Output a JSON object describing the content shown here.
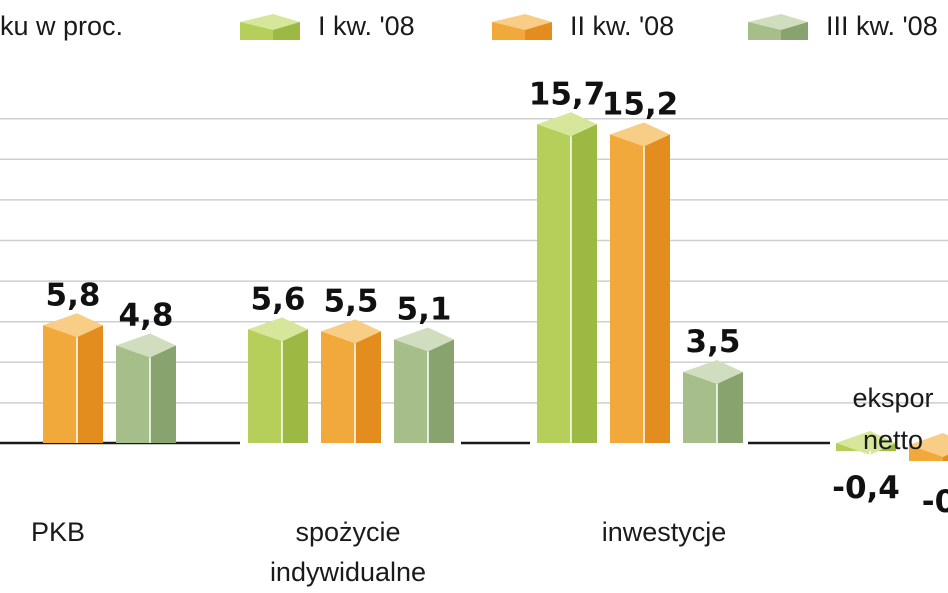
{
  "chart_data": {
    "type": "bar",
    "ylabel": "ku w proc.",
    "categories": [
      [
        "PKB"
      ],
      [
        "spożycie",
        "indywidualne"
      ],
      [
        "inwestycje"
      ],
      [
        "ekspor",
        "netto"
      ]
    ],
    "series": [
      {
        "name": "I kw. '08",
        "values": [
          null,
          5.6,
          15.7,
          -0.4
        ],
        "labels": [
          "",
          "5,6",
          "15,7",
          "-0,4"
        ],
        "colors": {
          "front": "#b5cf5a",
          "side": "#9cb944",
          "top": "#d6e79c"
        }
      },
      {
        "name": "II kw. '08",
        "values": [
          5.8,
          5.5,
          15.2,
          null
        ],
        "labels": [
          "5,8",
          "5,5",
          "15,2",
          "-0"
        ],
        "colors": {
          "front": "#f2a93b",
          "side": "#e48d1f",
          "top": "#f8cd86"
        }
      },
      {
        "name": "III kw. '08",
        "values": [
          4.8,
          5.1,
          3.5,
          null
        ],
        "labels": [
          "4,8",
          "5,1",
          "3,5",
          ""
        ],
        "colors": {
          "front": "#a6bf8a",
          "side": "#89a36f",
          "top": "#d1ddbf"
        }
      }
    ],
    "grid": true,
    "legend_position": "top"
  }
}
